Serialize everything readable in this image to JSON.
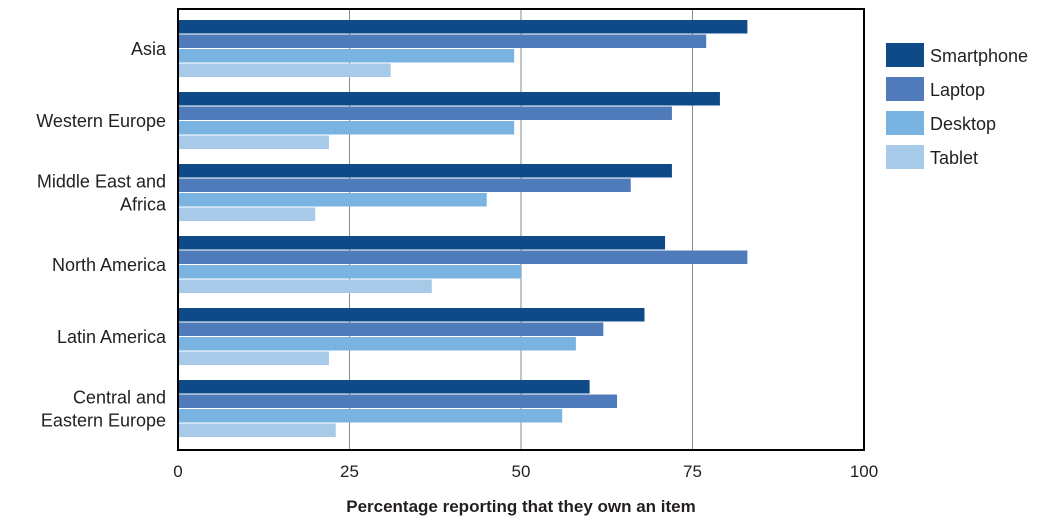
{
  "chart_data": {
    "type": "bar",
    "orientation": "horizontal",
    "categories": [
      [
        "Asia"
      ],
      [
        "Western Europe"
      ],
      [
        "Middle East and",
        "Africa"
      ],
      [
        "North America"
      ],
      [
        "Latin America"
      ],
      [
        "Central and",
        "Eastern Europe"
      ]
    ],
    "series": [
      {
        "name": "Smartphone",
        "color": "#0d4a87",
        "values": [
          83,
          79,
          72,
          71,
          68,
          60
        ]
      },
      {
        "name": "Laptop",
        "color": "#4f7bbb",
        "values": [
          77,
          72,
          66,
          83,
          62,
          64
        ]
      },
      {
        "name": "Desktop",
        "color": "#78b3e2",
        "values": [
          49,
          49,
          45,
          50,
          58,
          56
        ]
      },
      {
        "name": "Tablet",
        "color": "#a7cae9",
        "values": [
          31,
          22,
          20,
          37,
          22,
          23
        ]
      }
    ],
    "xlabel": "Percentage reporting that they own an item",
    "xlim": [
      0,
      100
    ],
    "xticks": [
      0,
      25,
      50,
      75,
      100
    ],
    "grid": true,
    "legend": "right"
  }
}
